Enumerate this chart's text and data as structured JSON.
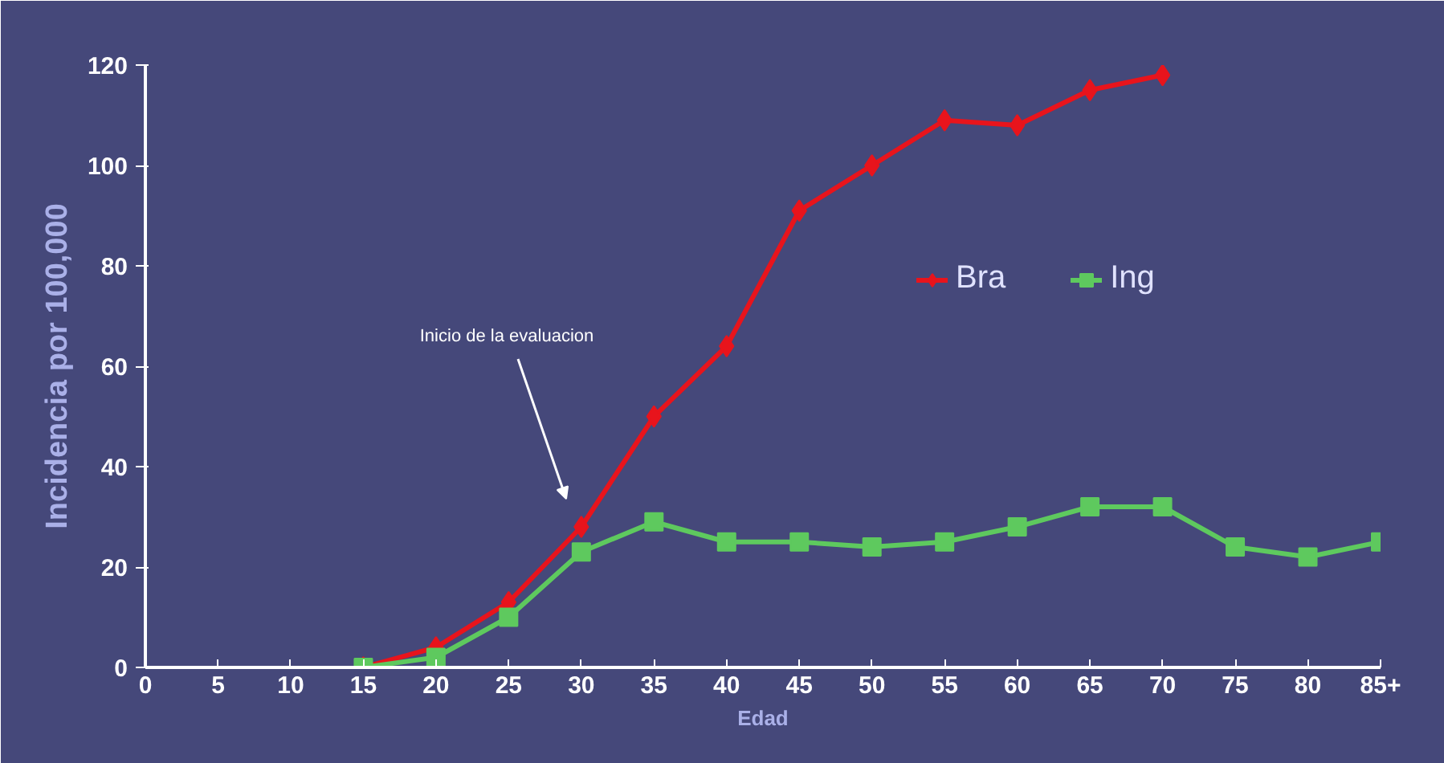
{
  "chart_data": {
    "type": "line",
    "xlabel": "Edad",
    "ylabel": "Incidencia por 100,000",
    "x": [
      15,
      20,
      25,
      30,
      35,
      40,
      45,
      50,
      55,
      60,
      65,
      70,
      75,
      80,
      85
    ],
    "series": [
      {
        "name": "Bra",
        "color": "#e8141c",
        "marker": "diamond",
        "values": [
          0,
          4,
          13,
          28,
          50,
          64,
          91,
          100,
          109,
          108,
          115,
          118,
          null,
          null,
          null
        ]
      },
      {
        "name": "Ing",
        "color": "#5ec95e",
        "marker": "square",
        "values": [
          0,
          2,
          10,
          23,
          29,
          25,
          25,
          24,
          25,
          28,
          32,
          32,
          24,
          22,
          25
        ]
      }
    ],
    "xlim": [
      0,
      85
    ],
    "xticks": [
      0,
      5,
      10,
      15,
      20,
      25,
      30,
      35,
      40,
      45,
      50,
      55,
      60,
      65,
      70,
      75,
      80,
      {
        "value": 85,
        "label": "85+"
      }
    ],
    "ylim": [
      0,
      120
    ],
    "yticks": [
      0,
      20,
      40,
      60,
      80,
      100,
      120
    ],
    "annotations": [
      "Inicio de la evaluacion"
    ],
    "legend": "top right",
    "grid": false,
    "line_style": "solid"
  }
}
